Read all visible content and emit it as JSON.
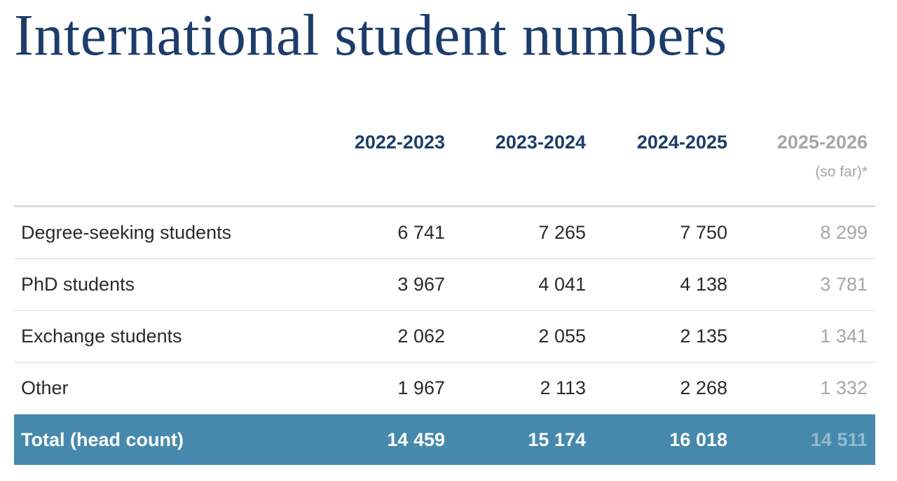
{
  "title": "International student numbers",
  "columns": [
    "2022-2023",
    "2023-2024",
    "2024-2025",
    "2025-2026"
  ],
  "column_note": "(so far)*",
  "rows": [
    {
      "label": "Degree-seeking students",
      "values": [
        "6 741",
        "7 265",
        "7 750",
        "8 299"
      ]
    },
    {
      "label": "PhD students",
      "values": [
        "3 967",
        "4 041",
        "4 138",
        "3 781"
      ]
    },
    {
      "label": "Exchange students",
      "values": [
        "2 062",
        "2 055",
        "2 135",
        "1 341"
      ]
    },
    {
      "label": "Other",
      "values": [
        "1 967",
        "2 113",
        "2 268",
        "1 332"
      ]
    }
  ],
  "total": {
    "label": "Total (head count)",
    "values": [
      "14 459",
      "15 174",
      "16 018",
      "14 511"
    ]
  },
  "colors": {
    "title": "#1c3d6b",
    "total_bg": "#4689ad",
    "muted": "#a6a6a6"
  }
}
